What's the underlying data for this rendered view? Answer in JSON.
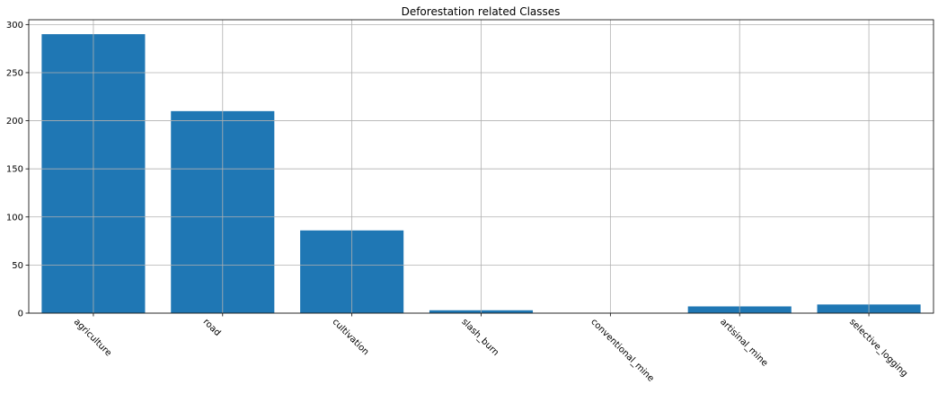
{
  "chart_data": {
    "type": "bar",
    "title": "Deforestation related Classes",
    "xlabel": "",
    "ylabel": "",
    "categories": [
      "agriculture",
      "road",
      "cultivation",
      "slash_burn",
      "conventional_mine",
      "artisinal_mine",
      "selective_logging"
    ],
    "values": [
      290,
      210,
      86,
      3,
      0,
      7,
      9
    ],
    "ylim": [
      0,
      305
    ],
    "yticks": [
      0,
      50,
      100,
      150,
      200,
      250,
      300
    ],
    "grid": true,
    "legend": "none",
    "bar_color": "#1f77b4",
    "xtick_rotation": "-45"
  }
}
